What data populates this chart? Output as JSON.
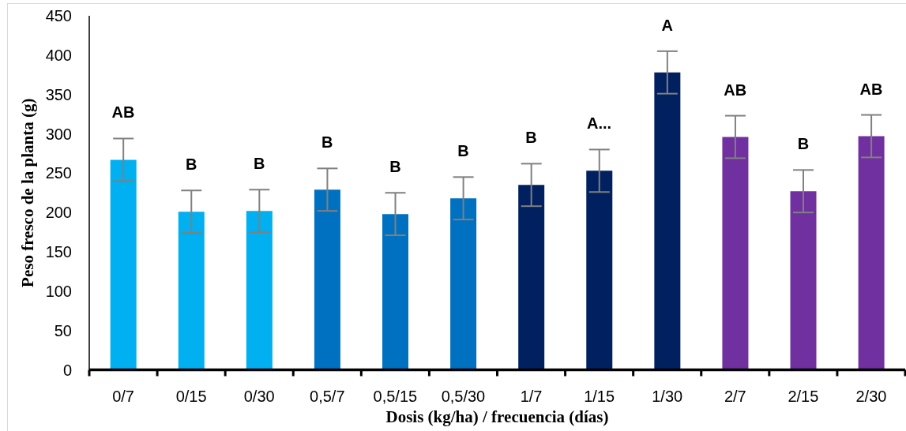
{
  "chart_data": {
    "type": "bar",
    "xlabel": "Dosis (kg/ha) / frecuencia (días)",
    "ylabel": "Peso fresco de la planta (g)",
    "categories": [
      "0/7",
      "0/15",
      "0/30",
      "0,5/7",
      "0,5/15",
      "0,5/30",
      "1/7",
      "1/15",
      "1/30",
      "2/7",
      "2/15",
      "2/30"
    ],
    "values": [
      267,
      201,
      202,
      229,
      198,
      218,
      235,
      253,
      378,
      296,
      227,
      297
    ],
    "colors": [
      "#00b0f0",
      "#00b0f0",
      "#00b0f0",
      "#0070c0",
      "#0070c0",
      "#0070c0",
      "#002060",
      "#002060",
      "#002060",
      "#7030a0",
      "#7030a0",
      "#7030a0"
    ],
    "errors": [
      27,
      27,
      27,
      27,
      27,
      27,
      27,
      27,
      27,
      27,
      27,
      27
    ],
    "ylim": [
      0,
      450
    ],
    "yticks": [
      0,
      50,
      100,
      150,
      200,
      250,
      300,
      350,
      400,
      450
    ],
    "annotations": [
      "AB",
      "B",
      "B",
      "B",
      "B",
      "B",
      "B",
      "A...",
      "A",
      "AB",
      "B",
      "AB"
    ]
  }
}
